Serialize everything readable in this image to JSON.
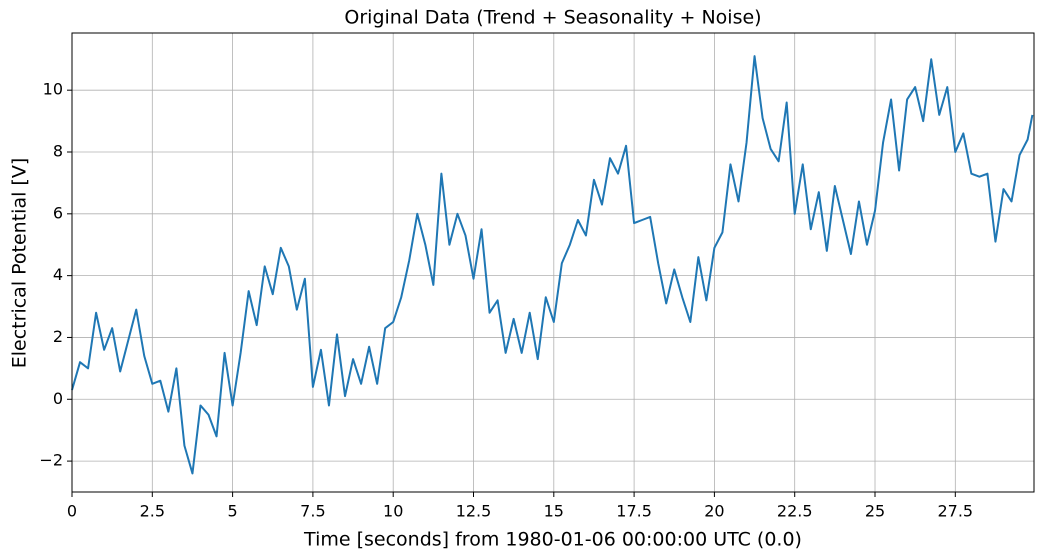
{
  "chart_data": {
    "type": "line",
    "title": "Original Data (Trend + Seasonality + Noise)",
    "x_label": "Time [seconds] from 1980-01-06 00:00:00 UTC (0.0)",
    "y_label": "Electrical Potential [V]",
    "x": [
      0,
      0.25,
      0.5,
      0.75,
      1,
      1.25,
      1.5,
      1.75,
      2,
      2.25,
      2.5,
      2.75,
      3,
      3.25,
      3.5,
      3.75,
      4,
      4.25,
      4.5,
      4.75,
      5,
      5.25,
      5.5,
      5.75,
      6,
      6.25,
      6.5,
      6.75,
      7,
      7.25,
      7.5,
      7.75,
      8,
      8.25,
      8.5,
      8.75,
      9,
      9.25,
      9.5,
      9.75,
      10,
      10.25,
      10.5,
      10.75,
      11,
      11.25,
      11.5,
      11.75,
      12,
      12.25,
      12.5,
      12.75,
      13,
      13.25,
      13.5,
      13.75,
      14,
      14.25,
      14.5,
      14.75,
      15,
      15.25,
      15.5,
      15.75,
      16,
      16.25,
      16.5,
      16.75,
      17,
      17.25,
      17.5,
      17.75,
      18,
      18.25,
      18.5,
      18.75,
      19,
      19.25,
      19.5,
      19.75,
      20,
      20.25,
      20.5,
      20.75,
      21,
      21.25,
      21.5,
      21.75,
      22,
      22.25,
      22.5,
      22.75,
      23,
      23.25,
      23.5,
      23.75,
      24,
      24.25,
      24.5,
      24.75,
      25,
      25.25,
      25.5,
      25.75,
      26,
      26.25,
      26.5,
      26.75,
      27,
      27.25,
      27.5,
      27.75,
      28,
      28.25,
      28.5,
      28.75,
      29,
      29.25,
      29.5,
      29.75,
      29.9
    ],
    "series": [
      {
        "name": "Original Data",
        "color": "#1f77b4",
        "values": [
          0.3,
          1.2,
          1.0,
          2.8,
          1.6,
          2.3,
          0.9,
          1.9,
          2.9,
          1.4,
          0.5,
          0.6,
          -0.4,
          1.0,
          -1.5,
          -2.4,
          -0.2,
          -0.5,
          -1.2,
          1.5,
          -0.2,
          1.5,
          3.5,
          2.4,
          4.3,
          3.4,
          4.9,
          4.3,
          2.9,
          3.9,
          0.4,
          1.6,
          -0.2,
          2.1,
          0.1,
          1.3,
          0.5,
          1.7,
          0.5,
          2.3,
          2.5,
          3.3,
          4.5,
          6.0,
          5.0,
          3.7,
          7.3,
          5.0,
          6.0,
          5.3,
          3.9,
          5.5,
          2.8,
          3.2,
          1.5,
          2.6,
          1.5,
          2.8,
          1.3,
          3.3,
          2.5,
          4.4,
          5.0,
          5.8,
          5.3,
          7.1,
          6.3,
          7.8,
          7.3,
          8.2,
          5.7,
          5.8,
          5.9,
          4.4,
          3.1,
          4.2,
          3.3,
          2.5,
          4.6,
          3.2,
          4.9,
          5.4,
          7.6,
          6.4,
          8.3,
          11.1,
          9.1,
          8.1,
          7.7,
          9.6,
          6.0,
          7.6,
          5.5,
          6.7,
          4.8,
          6.9,
          5.8,
          4.7,
          6.4,
          5.0,
          6.1,
          8.3,
          9.7,
          7.4,
          9.7,
          10.1,
          9.0,
          11.0,
          9.2,
          10.1,
          8.0,
          8.6,
          7.3,
          7.2,
          7.3,
          5.1,
          6.8,
          6.4,
          7.9,
          8.4,
          9.2
        ]
      }
    ],
    "xlim": [
      0,
      29.95
    ],
    "xticks": [
      0,
      2.5,
      5,
      7.5,
      10,
      12.5,
      15,
      17.5,
      20,
      22.5,
      25,
      27.5
    ],
    "ylim": [
      -3.0,
      11.85
    ],
    "yticks": [
      {
        "value": -2,
        "label": "−2"
      },
      0,
      2,
      4,
      6,
      8,
      10
    ],
    "grid": true
  }
}
